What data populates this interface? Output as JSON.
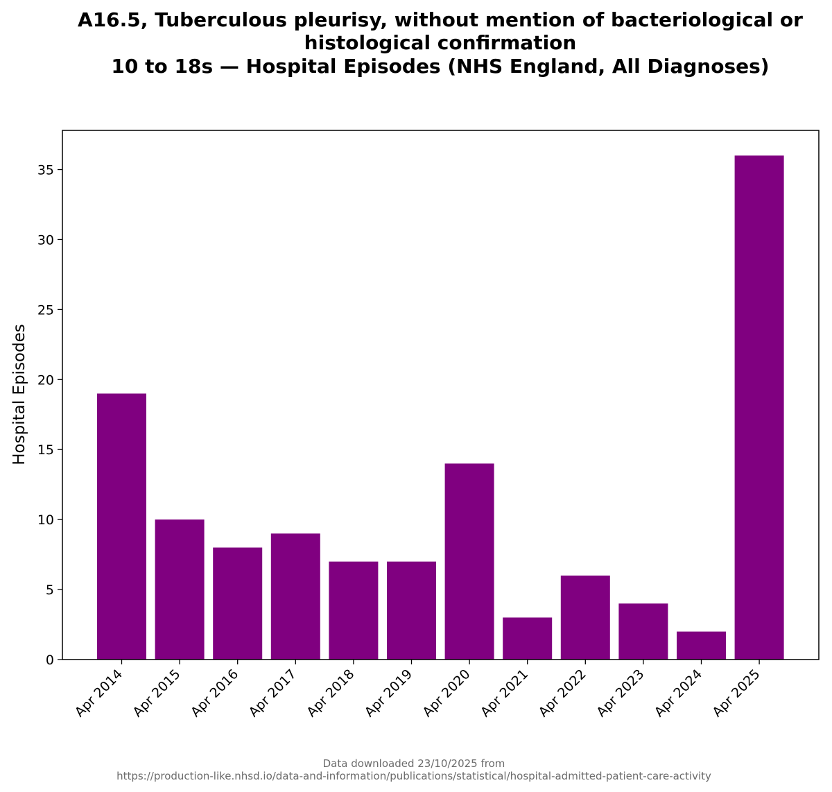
{
  "chart_data": {
    "type": "bar",
    "title_lines": [
      "A16.5, Tuberculous pleurisy, without mention of bacteriological or",
      "histological confirmation",
      "10 to 18s — Hospital Episodes (NHS England, All Diagnoses)"
    ],
    "xlabel": "",
    "ylabel": "Hospital Episodes",
    "categories": [
      "Apr 2014",
      "Apr 2015",
      "Apr 2016",
      "Apr 2017",
      "Apr 2018",
      "Apr 2019",
      "Apr 2020",
      "Apr 2021",
      "Apr 2022",
      "Apr 2023",
      "Apr 2024",
      "Apr 2025"
    ],
    "values": [
      19,
      10,
      8,
      9,
      7,
      7,
      14,
      3,
      6,
      4,
      2,
      36
    ],
    "ylim": [
      0,
      37.8
    ],
    "yticks": [
      0,
      5,
      10,
      15,
      20,
      25,
      30,
      35
    ],
    "bar_color": "#800080",
    "grid": false,
    "legend": "none"
  },
  "footer": {
    "line1": "Data downloaded 23/10/2025 from",
    "line2": "https://production-like.nhsd.io/data-and-information/publications/statistical/hospital-admitted-patient-care-activity"
  }
}
